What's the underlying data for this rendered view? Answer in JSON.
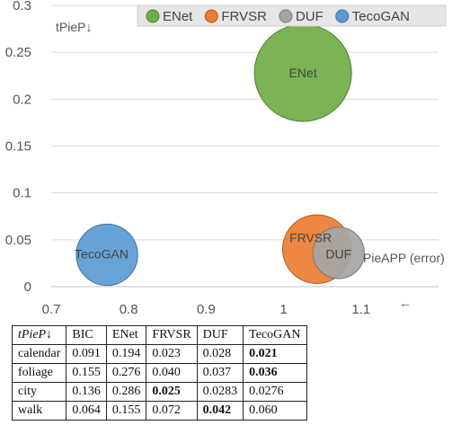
{
  "chart_data": {
    "type": "scatter",
    "subtype": "bubble",
    "xlim": [
      0.7,
      1.2
    ],
    "ylim": [
      0,
      0.3
    ],
    "xticks": [
      "0.7",
      "0.8",
      "0.9",
      "1",
      "1.1"
    ],
    "yticks": [
      "0",
      "0.05",
      "0.1",
      "0.15",
      "0.2",
      "0.25",
      "0.3"
    ],
    "grid": "horizontal",
    "legend_position": "top",
    "ylabel": "tPieP↓",
    "xlabel": "PieAPP (error)",
    "xlabel_arrow": "←",
    "series": [
      {
        "name": "ENet",
        "x": 1.025,
        "y": 0.228,
        "size": 1.0,
        "color": "#70AD47",
        "stroke": "#507E32"
      },
      {
        "name": "FRVSR",
        "x": 1.043,
        "y": 0.04,
        "size": 0.5,
        "color": "#ED7D31",
        "stroke": "#AE5A21"
      },
      {
        "name": "DUF",
        "x": 1.071,
        "y": 0.036,
        "size": 0.28,
        "color": "#A5A5A5",
        "stroke": "#787878"
      },
      {
        "name": "TecoGAN",
        "x": 0.772,
        "y": 0.034,
        "size": 0.4,
        "color": "#5B9BD5",
        "stroke": "#41719C"
      }
    ]
  },
  "table": {
    "header": [
      "tPieP↓",
      "BIC",
      "ENet",
      "FRVSR",
      "DUF",
      "TecoGAN"
    ],
    "rows": [
      {
        "cells": [
          "calendar",
          "0.091",
          "0.194",
          "0.023",
          "0.028",
          "0.021"
        ],
        "bold": [
          5
        ]
      },
      {
        "cells": [
          "foliage",
          "0.155",
          "0.276",
          "0.040",
          "0.037",
          "0.036"
        ],
        "bold": [
          5
        ]
      },
      {
        "cells": [
          "city",
          "0.136",
          "0.286",
          "0.025",
          "0.0283",
          "0.0276"
        ],
        "bold": [
          3
        ]
      },
      {
        "cells": [
          "walk",
          "0.064",
          "0.155",
          "0.072",
          "0.042",
          "0.060"
        ],
        "bold": [
          4
        ]
      }
    ]
  }
}
